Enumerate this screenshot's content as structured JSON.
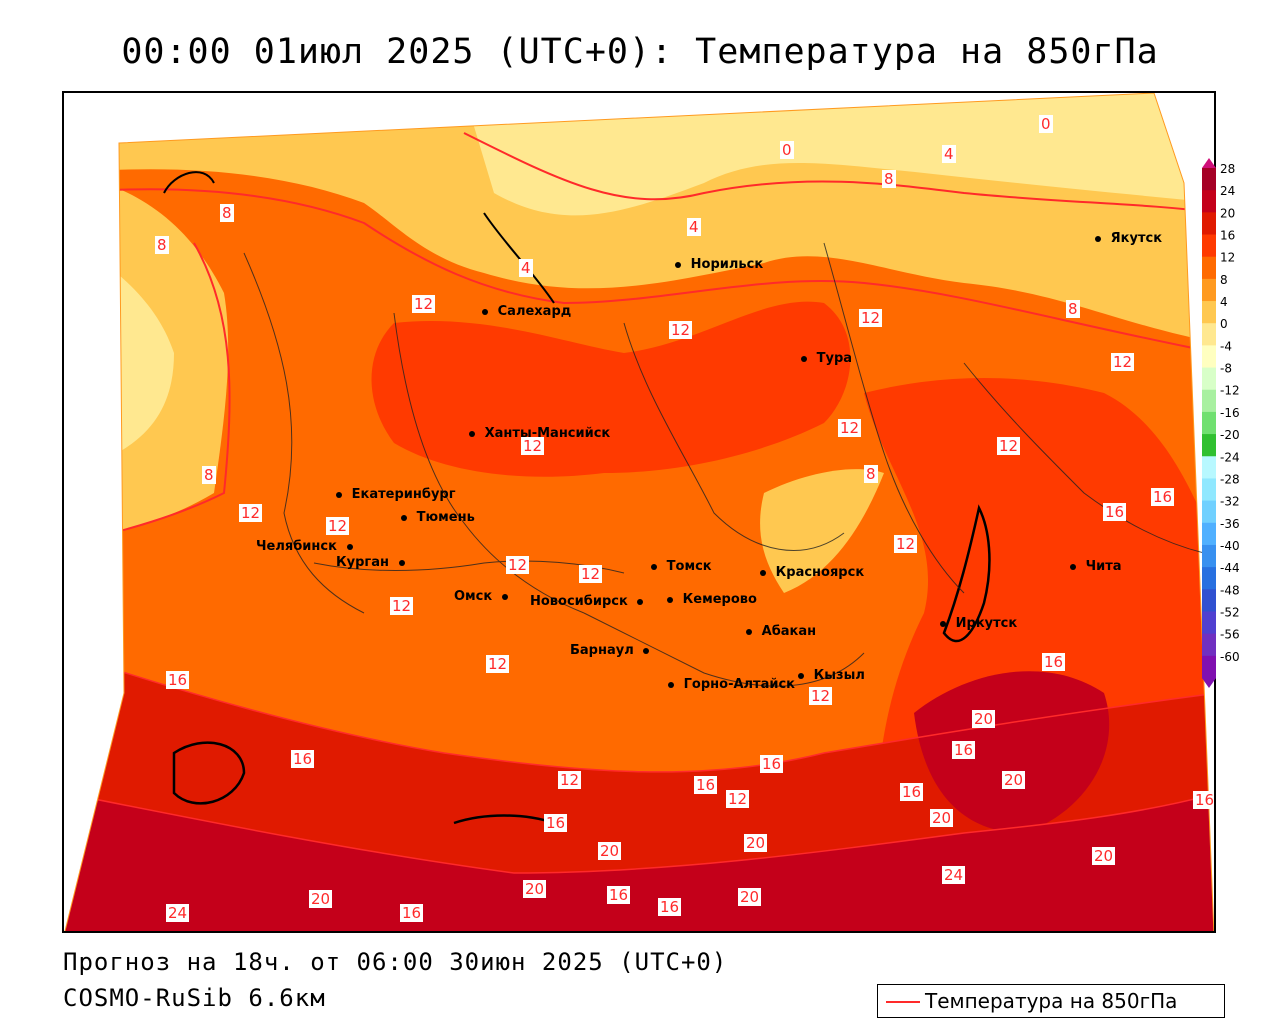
{
  "title": "00:00 01июл 2025 (UTC+0): Температура на 850гПа",
  "footer": {
    "forecast": "Прогноз на 18ч. от 06:00 30июн 2025 (UTC+0)",
    "model": "COSMO-RuSib 6.6км"
  },
  "legend": {
    "label": "Температура на 850гПа",
    "line_color": "#ff2a2a"
  },
  "colorbar": {
    "ticks": [
      "28",
      "24",
      "20",
      "16",
      "12",
      "8",
      "4",
      "0",
      "-4",
      "-8",
      "-12",
      "-16",
      "-20",
      "-24",
      "-28",
      "-32",
      "-36",
      "-40",
      "-44",
      "-48",
      "-52",
      "-56",
      "-60"
    ],
    "colors": [
      "#a50026",
      "#c4001a",
      "#e01a00",
      "#ff3a00",
      "#ff6a00",
      "#ff9a20",
      "#ffc850",
      "#ffe890",
      "#ffffc0",
      "#d8ffc8",
      "#a8f0a0",
      "#70e070",
      "#30c030",
      "#b8f8ff",
      "#90e8ff",
      "#70d0ff",
      "#50b0ff",
      "#3890f0",
      "#2870e0",
      "#3050d0",
      "#5040d0",
      "#7030c0",
      "#8010b0"
    ]
  },
  "cities": [
    {
      "name": "Норильск"
    },
    {
      "name": "Якутск"
    },
    {
      "name": "Салехард"
    },
    {
      "name": "Тура"
    },
    {
      "name": "Ханты-Мансийск"
    },
    {
      "name": "Екатеринбург"
    },
    {
      "name": "Тюмень"
    },
    {
      "name": "Челябинск"
    },
    {
      "name": "Курган"
    },
    {
      "name": "Омск"
    },
    {
      "name": "Новосибирск"
    },
    {
      "name": "Томск"
    },
    {
      "name": "Кемерово"
    },
    {
      "name": "Красноярск"
    },
    {
      "name": "Барнаул"
    },
    {
      "name": "Абакан"
    },
    {
      "name": "Горно-Алтайск"
    },
    {
      "name": "Кызыл"
    },
    {
      "name": "Иркутск"
    },
    {
      "name": "Чита"
    }
  ],
  "isotherm_labels": [
    "0",
    "4",
    "8",
    "12",
    "16",
    "20",
    "24"
  ]
}
